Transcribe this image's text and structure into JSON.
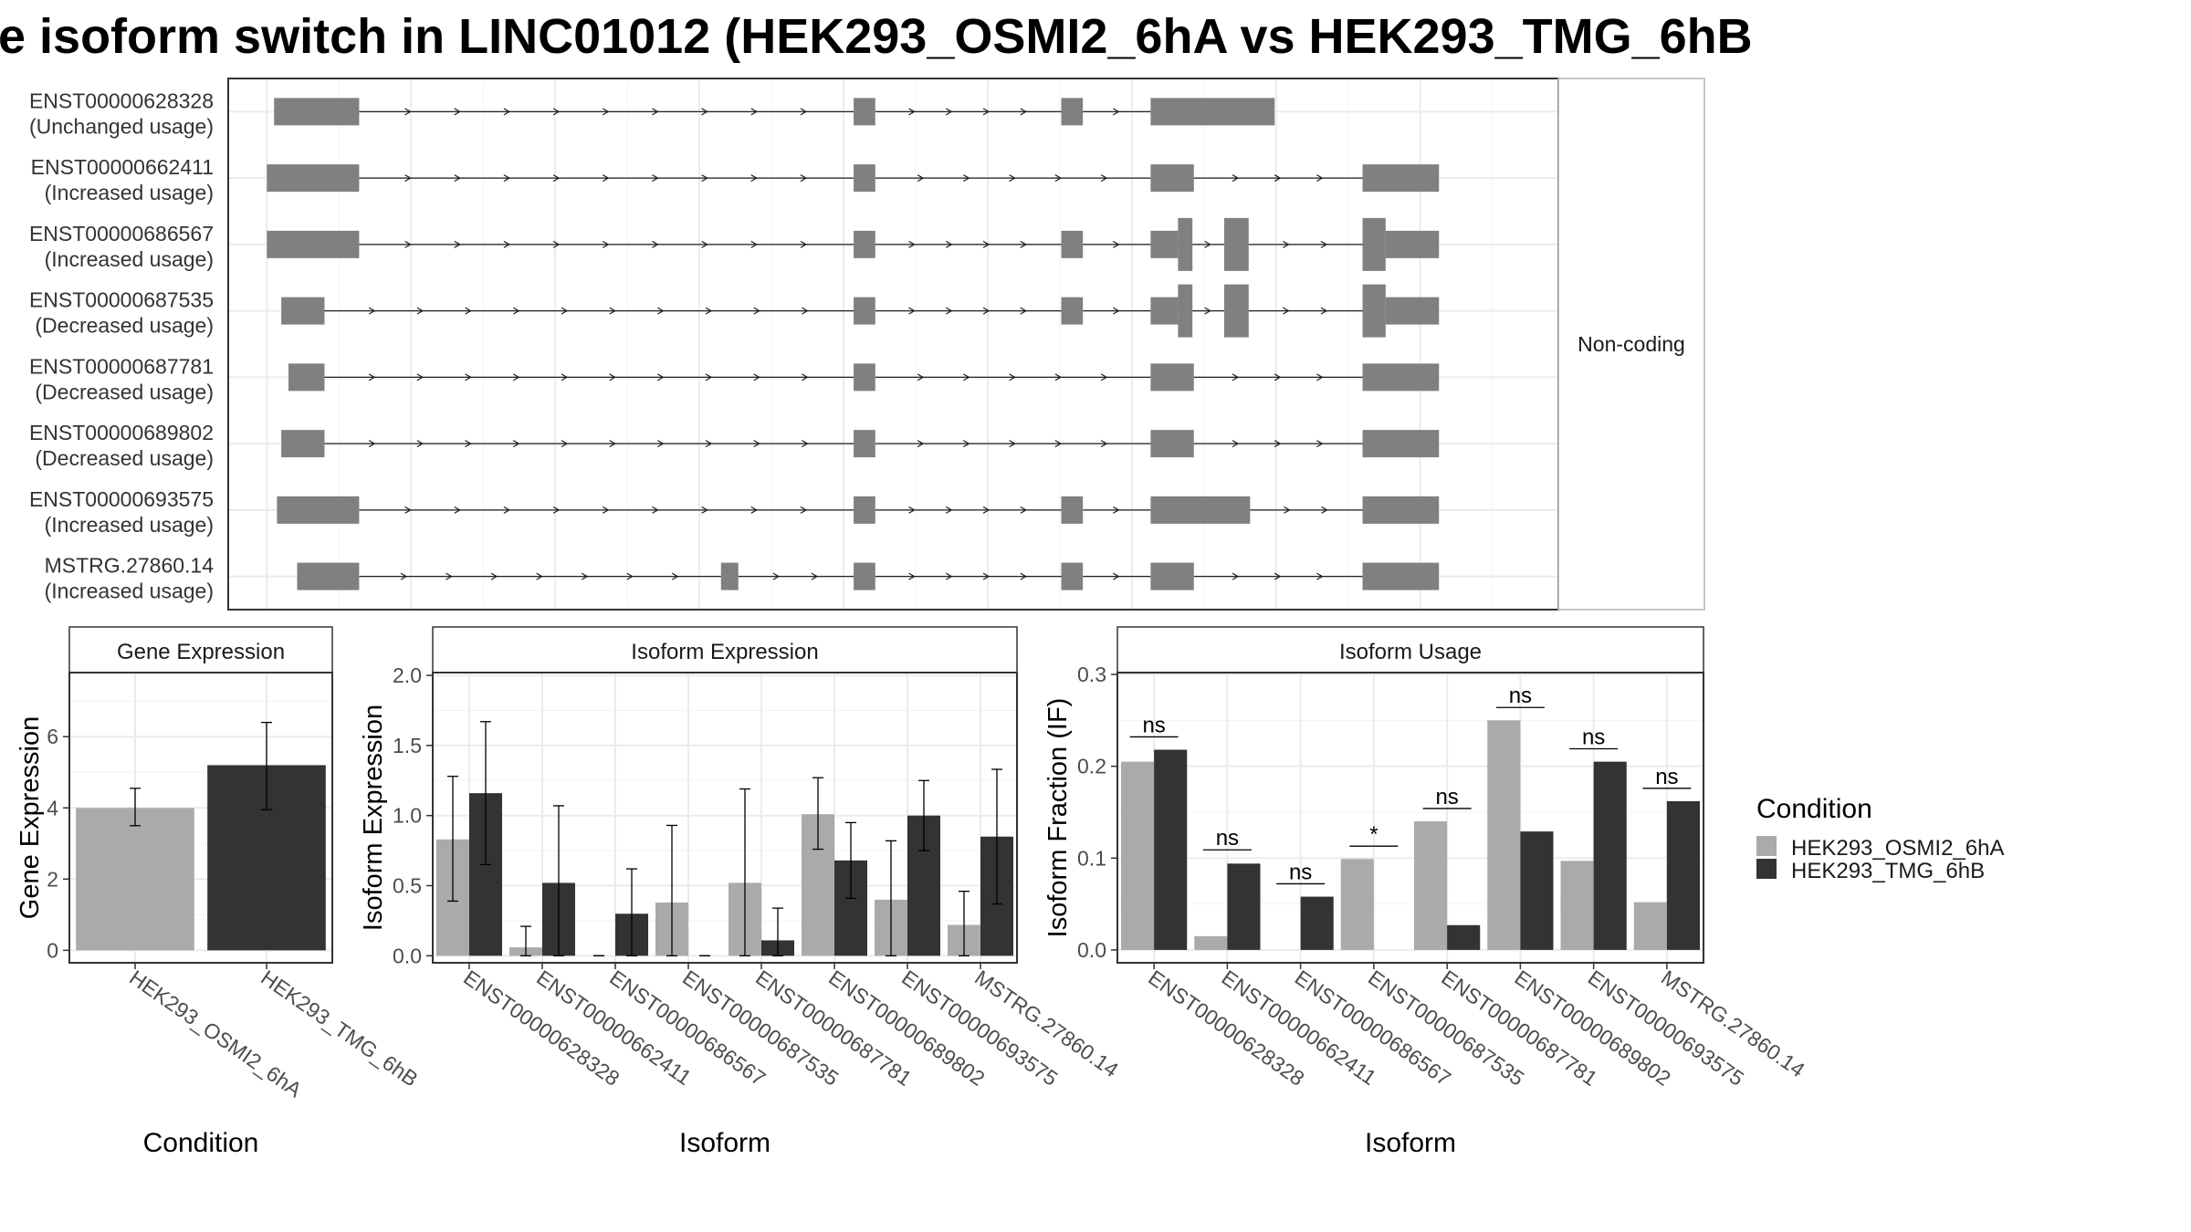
{
  "title": "e isoform switch in LINC01012 (HEK293_OSMI2_6hA vs HEK293_TMG_6hB",
  "colors": {
    "condA": "#aaaaaa",
    "condB": "#333333",
    "exon": "#808080",
    "grid": "#ebebeb",
    "strip": "#ffffff"
  },
  "structure": {
    "strip_label": "Non-coding",
    "isoforms": [
      {
        "id": "ENST00000628328",
        "usage": "(Unchanged usage)",
        "exons": [
          [
            155,
            214,
            "thin"
          ],
          [
            557,
            572,
            "thin"
          ],
          [
            701,
            716,
            "thin"
          ],
          [
            763,
            849,
            "thin"
          ]
        ]
      },
      {
        "id": "ENST00000662411",
        "usage": "(Increased usage)",
        "exons": [
          [
            150,
            214,
            "thin"
          ],
          [
            557,
            572,
            "thin"
          ],
          [
            763,
            793,
            "thin"
          ],
          [
            910,
            963,
            "thin"
          ]
        ]
      },
      {
        "id": "ENST00000686567",
        "usage": "(Increased usage)",
        "exons": [
          [
            150,
            214,
            "thin"
          ],
          [
            557,
            572,
            "thin"
          ],
          [
            701,
            716,
            "thin"
          ],
          [
            763,
            782,
            "thin"
          ],
          [
            782,
            792,
            "thick"
          ],
          [
            814,
            831,
            "thick"
          ],
          [
            910,
            926,
            "thick"
          ],
          [
            926,
            963,
            "thin"
          ]
        ]
      },
      {
        "id": "ENST00000687535",
        "usage": "(Decreased usage)",
        "exons": [
          [
            160,
            190,
            "thin"
          ],
          [
            557,
            572,
            "thin"
          ],
          [
            701,
            716,
            "thin"
          ],
          [
            763,
            782,
            "thin"
          ],
          [
            782,
            792,
            "thick"
          ],
          [
            814,
            831,
            "thick"
          ],
          [
            910,
            926,
            "thick"
          ],
          [
            926,
            963,
            "thin"
          ]
        ]
      },
      {
        "id": "ENST00000687781",
        "usage": "(Decreased usage)",
        "exons": [
          [
            165,
            190,
            "thin"
          ],
          [
            557,
            572,
            "thin"
          ],
          [
            763,
            793,
            "thin"
          ],
          [
            910,
            963,
            "thin"
          ]
        ]
      },
      {
        "id": "ENST00000689802",
        "usage": "(Decreased usage)",
        "exons": [
          [
            160,
            190,
            "thin"
          ],
          [
            557,
            572,
            "thin"
          ],
          [
            763,
            793,
            "thin"
          ],
          [
            910,
            963,
            "thin"
          ]
        ]
      },
      {
        "id": "ENST00000693575",
        "usage": "(Increased usage)",
        "exons": [
          [
            157,
            214,
            "thin"
          ],
          [
            557,
            572,
            "thin"
          ],
          [
            701,
            716,
            "thin"
          ],
          [
            763,
            832,
            "thin"
          ],
          [
            910,
            963,
            "thin"
          ]
        ]
      },
      {
        "id": "MSTRG.27860.14",
        "usage": "(Increased usage)",
        "exons": [
          [
            171,
            214,
            "thin"
          ],
          [
            465,
            477,
            "thin"
          ],
          [
            557,
            572,
            "thin"
          ],
          [
            701,
            716,
            "thin"
          ],
          [
            763,
            793,
            "thin"
          ],
          [
            910,
            963,
            "thin"
          ]
        ]
      }
    ]
  },
  "legend": {
    "title": "Condition",
    "items": [
      "HEK293_OSMI2_6hA",
      "HEK293_TMG_6hB"
    ]
  },
  "chart_data": [
    {
      "type": "bar",
      "title": "Gene Expression",
      "xlabel": "Condition",
      "ylabel": "Gene Expression",
      "categories": [
        "HEK293_OSMI2_6hA",
        "HEK293_TMG_6hB"
      ],
      "yticks": [
        "0",
        "2",
        "4",
        "6"
      ],
      "ylim": [
        -0.35,
        7.8
      ],
      "values": [
        4.0,
        5.2
      ],
      "errors": [
        [
          3.5,
          4.55
        ],
        [
          3.95,
          6.4
        ]
      ],
      "colors": [
        "#aaaaaa",
        "#333333"
      ]
    },
    {
      "type": "bar",
      "title": "Isoform Expression",
      "xlabel": "Isoform",
      "ylabel": "Isoform Expression",
      "categories": [
        "ENST00000628328",
        "ENST00000662411",
        "ENST00000686567",
        "ENST00000687535",
        "ENST00000687781",
        "ENST00000689802",
        "ENST00000693575",
        "MSTRG.27860.14"
      ],
      "yticks": [
        "0.0",
        "0.5",
        "1.0",
        "1.5",
        "2.0"
      ],
      "ylim": [
        -0.05,
        2.02
      ],
      "series": [
        {
          "name": "HEK293_OSMI2_6hA",
          "values": [
            0.83,
            0.06,
            0.0,
            0.38,
            0.52,
            1.01,
            0.4,
            0.22
          ],
          "errors": [
            [
              0.39,
              1.28
            ],
            [
              0.0,
              0.21
            ],
            [
              0.0,
              0.0
            ],
            [
              0.0,
              0.93
            ],
            [
              0.0,
              1.19
            ],
            [
              0.76,
              1.27
            ],
            [
              0.0,
              0.82
            ],
            [
              0.0,
              0.46
            ]
          ]
        },
        {
          "name": "HEK293_TMG_6hB",
          "values": [
            1.16,
            0.52,
            0.3,
            0.0,
            0.11,
            0.68,
            1.0,
            0.85
          ],
          "errors": [
            [
              0.65,
              1.67
            ],
            [
              0.0,
              1.07
            ],
            [
              0.0,
              0.62
            ],
            [
              0.0,
              0.0
            ],
            [
              0.0,
              0.34
            ],
            [
              0.41,
              0.95
            ],
            [
              0.75,
              1.25
            ],
            [
              0.37,
              1.33
            ]
          ]
        }
      ]
    },
    {
      "type": "bar",
      "title": "Isoform Usage",
      "xlabel": "Isoform",
      "ylabel": "Isoform Fraction (IF)",
      "categories": [
        "ENST00000628328",
        "ENST00000662411",
        "ENST00000686567",
        "ENST00000687535",
        "ENST00000687781",
        "ENST00000689802",
        "ENST00000693575",
        "MSTRG.27860.14"
      ],
      "yticks": [
        "0.0",
        "0.1",
        "0.2",
        "0.3"
      ],
      "ylim": [
        -0.014,
        0.302
      ],
      "series": [
        {
          "name": "HEK293_OSMI2_6hA",
          "values": [
            0.205,
            0.015,
            0.0,
            0.099,
            0.14,
            0.25,
            0.097,
            0.052
          ]
        },
        {
          "name": "HEK293_TMG_6hB",
          "values": [
            0.218,
            0.094,
            0.058,
            0.0,
            0.027,
            0.129,
            0.205,
            0.162
          ]
        }
      ],
      "significance": [
        "ns",
        "ns",
        "ns",
        "*",
        "ns",
        "ns",
        "ns",
        "ns"
      ],
      "sig_y": [
        0.232,
        0.109,
        0.072,
        0.113,
        0.154,
        0.264,
        0.219,
        0.176
      ]
    }
  ]
}
